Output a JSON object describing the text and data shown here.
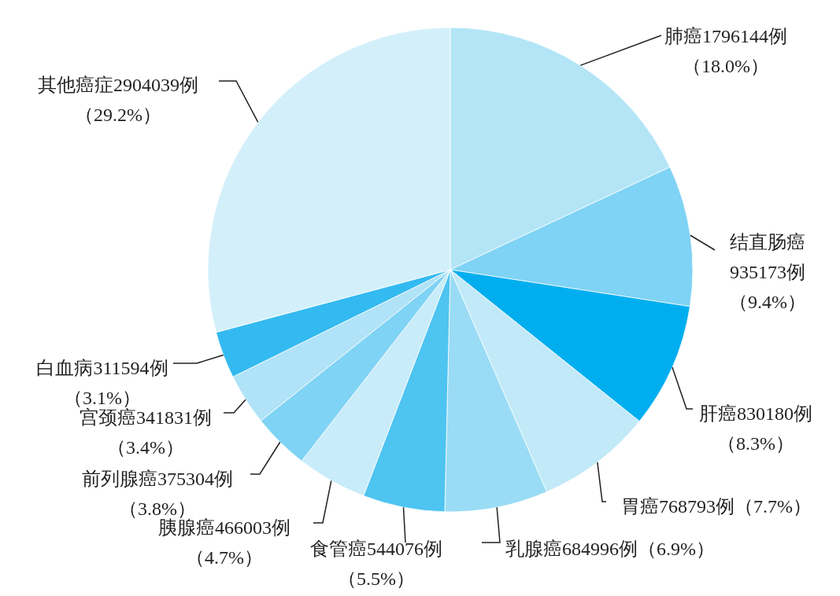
{
  "chart_data": {
    "type": "pie",
    "categories": [
      "肺癌",
      "结直肠癌",
      "肝癌",
      "胃癌",
      "乳腺癌",
      "食管癌",
      "胰腺癌",
      "前列腺癌",
      "宫颈癌",
      "白血病",
      "其他癌症"
    ],
    "values": [
      1796144,
      935173,
      830180,
      768793,
      684996,
      544076,
      466003,
      375304,
      341831,
      311594,
      2904039
    ],
    "colors": [
      "#b3e5f7",
      "#7fd3f4",
      "#00aeef",
      "#c2e9f8",
      "#9adcf5",
      "#4ec4f1",
      "#c8ecf9",
      "#7fd3f4",
      "#b0e3f7",
      "#33baf0",
      "#d3f0fa"
    ],
    "value_labels": [
      "1796144例（18.0%）",
      "935173例（9.4%）",
      "830180例（8.3%）",
      "768793例（7.7%）",
      "684996例（6.9%）",
      "544076例（5.5%）",
      "466003例（4.7%）",
      "375304例（3.8%）",
      "341831例（3.4%）",
      "311594例（3.1%）",
      "2904039例（29.2%）"
    ]
  }
}
